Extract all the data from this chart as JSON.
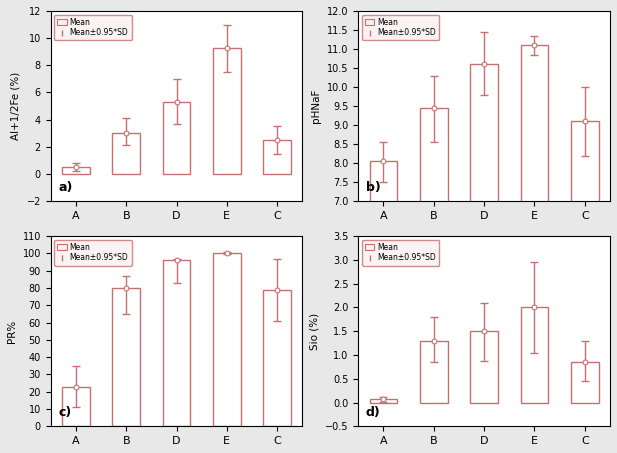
{
  "categories": [
    "A",
    "B",
    "D",
    "E",
    "C"
  ],
  "subplot_a": {
    "means": [
      0.5,
      3.0,
      5.3,
      9.3,
      2.5
    ],
    "sd_upper": [
      0.8,
      4.1,
      7.0,
      11.0,
      3.5
    ],
    "sd_lower": [
      0.2,
      2.1,
      3.7,
      7.5,
      1.5
    ],
    "ylabel": "Al+1/2Fe (%)",
    "ylim": [
      -2,
      12
    ],
    "yticks": [
      -2,
      0,
      2,
      4,
      6,
      8,
      10,
      12
    ],
    "label": "a)"
  },
  "subplot_b": {
    "means": [
      8.05,
      9.45,
      10.6,
      11.1,
      9.1
    ],
    "sd_upper": [
      8.55,
      10.3,
      11.45,
      11.35,
      10.0
    ],
    "sd_lower": [
      7.5,
      8.55,
      9.8,
      10.85,
      8.2
    ],
    "ylabel": "pHNaF",
    "ylim": [
      7.0,
      12.0
    ],
    "yticks": [
      7.0,
      7.5,
      8.0,
      8.5,
      9.0,
      9.5,
      10.0,
      10.5,
      11.0,
      11.5,
      12.0
    ],
    "label": "b)"
  },
  "subplot_c": {
    "means": [
      23.0,
      80.0,
      96.0,
      100.0,
      79.0
    ],
    "sd_upper": [
      35.0,
      87.0,
      97.0,
      100.5,
      97.0
    ],
    "sd_lower": [
      11.0,
      65.0,
      83.0,
      99.5,
      61.0
    ],
    "ylabel": "PR%",
    "ylim": [
      0,
      110
    ],
    "yticks": [
      0,
      10,
      20,
      30,
      40,
      50,
      60,
      70,
      80,
      90,
      100,
      110
    ],
    "label": "c)"
  },
  "subplot_d": {
    "means": [
      0.07,
      1.3,
      1.5,
      2.0,
      0.85
    ],
    "sd_upper": [
      0.12,
      1.8,
      2.1,
      2.95,
      1.3
    ],
    "sd_lower": [
      0.02,
      0.85,
      0.88,
      1.05,
      0.45
    ],
    "ylabel": "Sio (%)",
    "ylim": [
      -0.5,
      3.5
    ],
    "yticks": [
      -0.5,
      0.0,
      0.5,
      1.0,
      1.5,
      2.0,
      2.5,
      3.0,
      3.5
    ],
    "label": "d)"
  },
  "bar_color": "white",
  "bar_edge_color": "#c87070",
  "error_color": "#c87070",
  "mean_marker_facecolor": "white",
  "mean_marker_edgecolor": "#c87070",
  "legend_face_color": "#f8f0f0",
  "legend_edge_color": "#c87070",
  "legend_text": [
    "Mean",
    "Mean±0.95*SD"
  ],
  "figure_bg": "#e8e8e8"
}
